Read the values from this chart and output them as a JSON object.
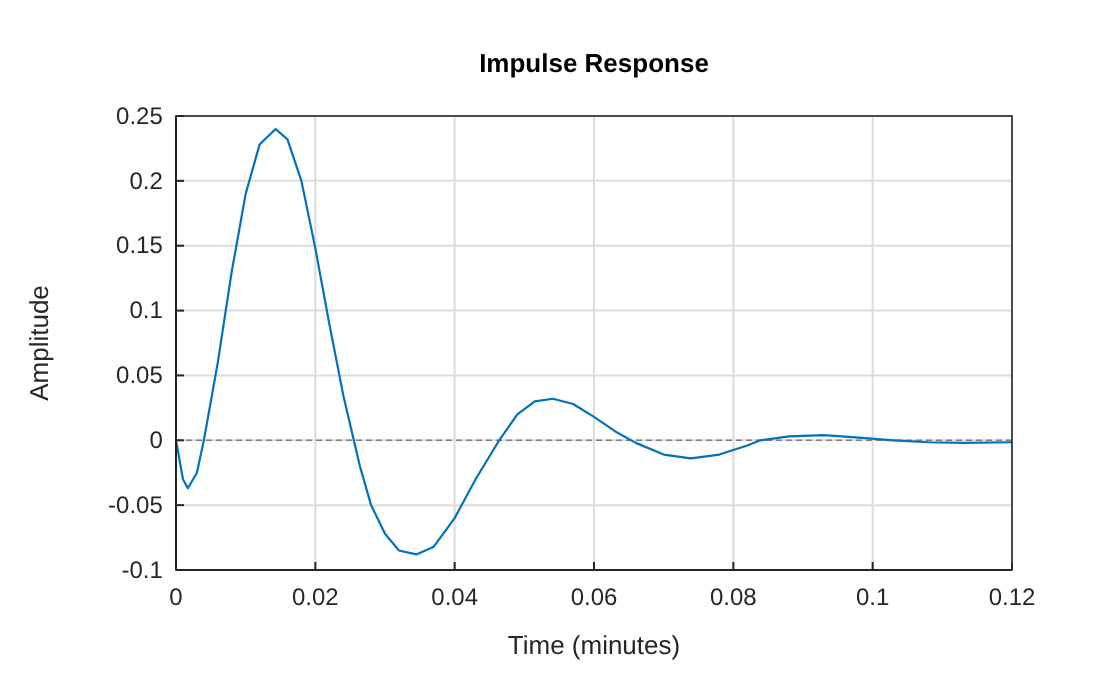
{
  "chart_data": {
    "type": "line",
    "title": "Impulse Response",
    "xlabel": "Time (minutes)",
    "ylabel": "Amplitude",
    "xlim": [
      0,
      0.12
    ],
    "xticks": [
      0,
      0.02,
      0.04,
      0.06,
      0.08,
      0.1,
      0.12
    ],
    "ylim": [
      -0.1,
      0.25
    ],
    "yticks": [
      -0.1,
      -0.05,
      0,
      0.05,
      0.1,
      0.15,
      0.2,
      0.25
    ],
    "grid": true,
    "line_style": "solid",
    "ref_lines": [
      {
        "axis": "y",
        "value": 0,
        "color": "#7f7f7f",
        "line_style": "dashed"
      }
    ],
    "series": [
      {
        "color": "#0072bd",
        "x": [
          0,
          0.001,
          0.0017,
          0.003,
          0.004,
          0.006,
          0.008,
          0.01,
          0.012,
          0.0143,
          0.016,
          0.018,
          0.02,
          0.022,
          0.024,
          0.0264,
          0.028,
          0.03,
          0.032,
          0.0345,
          0.037,
          0.04,
          0.043,
          0.0464,
          0.049,
          0.0515,
          0.0541,
          0.057,
          0.06,
          0.063,
          0.066,
          0.07,
          0.0739,
          0.078,
          0.082,
          0.0839,
          0.088,
          0.093,
          0.098,
          0.103,
          0.108,
          0.113,
          0.12
        ],
        "values": [
          0,
          -0.03,
          -0.037,
          -0.025,
          0,
          0.06,
          0.13,
          0.19,
          0.228,
          0.24,
          0.232,
          0.2,
          0.148,
          0.09,
          0.035,
          -0.02,
          -0.05,
          -0.072,
          -0.085,
          -0.088,
          -0.082,
          -0.06,
          -0.03,
          0,
          0.02,
          0.03,
          0.032,
          0.028,
          0.018,
          0.007,
          -0.002,
          -0.011,
          -0.014,
          -0.011,
          -0.004,
          0,
          0.003,
          0.004,
          0.002,
          0,
          -0.0015,
          -0.002,
          -0.0015
        ]
      }
    ]
  }
}
